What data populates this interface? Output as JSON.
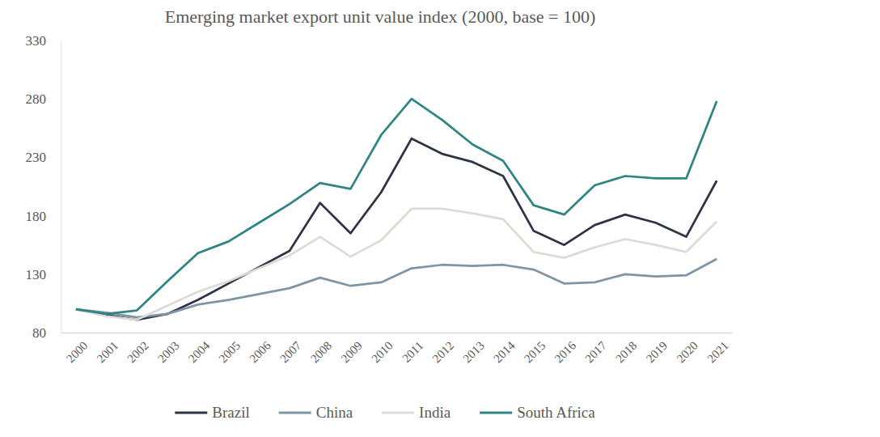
{
  "chart_data": {
    "type": "line",
    "title": "Emerging market export unit value index (2000, base = 100)",
    "categories": [
      "2000",
      "2001",
      "2002",
      "2003",
      "2004",
      "2005",
      "2006",
      "2007",
      "2008",
      "2009",
      "2010",
      "2011",
      "2012",
      "2013",
      "2014",
      "2015",
      "2016",
      "2017",
      "2018",
      "2019",
      "2020",
      "2021"
    ],
    "series": [
      {
        "name": "Brazil",
        "color": "#2e3445",
        "values": [
          100,
          95,
          91,
          96,
          108,
          122,
          136,
          150,
          191,
          165,
          200,
          246,
          233,
          226,
          214,
          167,
          155,
          172,
          181,
          174,
          162,
          210
        ]
      },
      {
        "name": "China",
        "color": "#7f95a3",
        "values": [
          100,
          97,
          93,
          96,
          104,
          108,
          113,
          118,
          127,
          120,
          123,
          135,
          138,
          137,
          138,
          134,
          122,
          123,
          130,
          128,
          129,
          143
        ]
      },
      {
        "name": "India",
        "color": "#dcdcd6",
        "values": [
          100,
          94,
          91,
          103,
          115,
          124,
          135,
          146,
          162,
          145,
          159,
          186,
          186,
          182,
          177,
          149,
          144,
          153,
          160,
          155,
          149,
          175
        ]
      },
      {
        "name": "South Africa",
        "color": "#2e8583",
        "values": [
          100,
          96,
          99,
          124,
          148,
          158,
          174,
          190,
          208,
          203,
          249,
          280,
          262,
          241,
          227,
          189,
          181,
          206,
          214,
          212,
          212,
          278
        ]
      }
    ],
    "ylim": [
      80,
      330
    ],
    "yticks": [
      80,
      130,
      180,
      230,
      280,
      330
    ],
    "grid": false,
    "legend": "bottom"
  }
}
